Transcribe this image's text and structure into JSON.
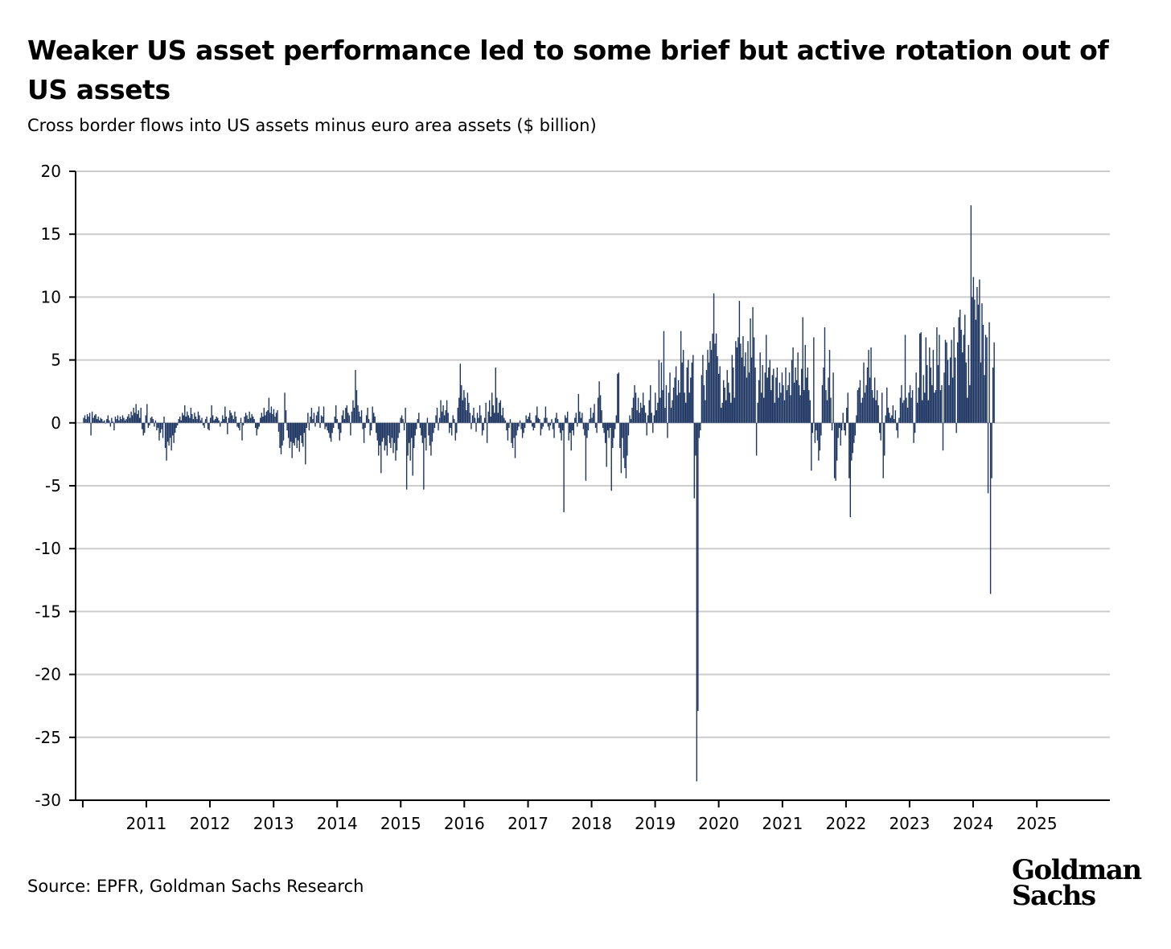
{
  "title": "Weaker US asset performance led to some brief but active rotation out of US assets",
  "subtitle": "Cross border flows into US assets minus euro area assets ($ billion)",
  "source": "Source: EPFR, Goldman Sachs Research",
  "logo": {
    "line1": "Goldman",
    "line2": "Sachs"
  },
  "colors": {
    "bar": "#1c3461",
    "grid": "#cccccc",
    "axis": "#000000"
  },
  "chart_data": {
    "type": "bar",
    "title": "Weaker US asset performance led to some brief but active rotation out of US assets",
    "ylabel": "Cross border flows into US assets minus euro area assets ($ billion)",
    "xlabel": "",
    "ylim": [
      -30,
      20
    ],
    "yticks": [
      20,
      15,
      10,
      5,
      0,
      -5,
      -10,
      -15,
      -20,
      -25,
      -30
    ],
    "ytick_labels": [
      "20",
      "15",
      "10",
      "5",
      "0",
      "-5",
      "-10",
      "-15",
      "-20",
      "-25",
      "-30"
    ],
    "xlim": [
      "2010-01-06",
      "2025-12-31"
    ],
    "xticks": [
      "2011",
      "2012",
      "2013",
      "2014",
      "2015",
      "2016",
      "2017",
      "2018",
      "2019",
      "2020",
      "2021",
      "2022",
      "2023",
      "2024",
      "2025"
    ],
    "grid": "horizontal",
    "legend": "none",
    "series": [
      {
        "frequency": "weekly",
        "start": "2010-01-06",
        "values": [
          0.4,
          0.6,
          0.3,
          0.7,
          0.5,
          0.8,
          -1.0,
          0.9,
          0.4,
          0.6,
          0.7,
          0.3,
          0.5,
          0.2,
          0.4,
          0.3,
          0.1,
          0.2,
          0.0,
          0.3,
          0.6,
          0.2,
          -0.3,
          0.4,
          0.1,
          -0.6,
          0.5,
          0.3,
          0.6,
          0.2,
          0.5,
          0.3,
          0.6,
          0.4,
          0.2,
          0.3,
          0.5,
          0.7,
          0.4,
          0.9,
          0.6,
          1.2,
          0.8,
          1.5,
          0.7,
          1.0,
          0.4,
          1.2,
          -0.5,
          -1.0,
          -0.8,
          0.6,
          1.5,
          -0.4,
          -0.2,
          0.4,
          0.5,
          0.3,
          -0.3,
          0.2,
          -0.6,
          -0.4,
          -1.4,
          -0.8,
          -0.5,
          -1.2,
          0.5,
          -2.0,
          -3.0,
          -1.5,
          -1.8,
          -1.2,
          -2.2,
          -1.0,
          -1.6,
          -0.8,
          -0.4,
          -0.2,
          0.3,
          0.5,
          0.2,
          0.8,
          0.6,
          1.4,
          0.5,
          0.9,
          0.6,
          0.4,
          1.2,
          0.7,
          0.3,
          0.8,
          0.5,
          0.3,
          0.9,
          0.6,
          0.2,
          0.4,
          -0.2,
          -0.4,
          0.3,
          0.5,
          -0.5,
          -0.6,
          0.4,
          1.4,
          0.6,
          0.2,
          0.3,
          0.5,
          0.4,
          0.2,
          -0.3,
          0.1,
          0.6,
          0.3,
          1.3,
          0.5,
          -0.9,
          0.4,
          1.0,
          0.8,
          0.6,
          0.3,
          0.9,
          0.5,
          -0.3,
          -0.4,
          -0.6,
          0.4,
          -1.4,
          -0.2,
          0.5,
          0.8,
          0.6,
          0.3,
          0.9,
          0.4,
          0.7,
          0.5,
          0.3,
          -0.4,
          -1.0,
          -0.5,
          -0.3,
          0.4,
          0.8,
          0.5,
          1.2,
          0.6,
          0.9,
          1.0,
          2.0,
          0.8,
          1.3,
          0.7,
          1.1,
          0.5,
          0.8,
          1.0,
          -0.7,
          -2.0,
          -2.5,
          -1.8,
          -1.4,
          2.4,
          1.0,
          -0.6,
          -1.2,
          -2.0,
          -1.5,
          -2.8,
          -1.6,
          -1.8,
          -1.2,
          -2.0,
          -1.4,
          -2.3,
          -1.0,
          -1.6,
          -1.9,
          -0.8,
          -3.3,
          -0.4,
          0.8,
          -0.6,
          0.5,
          1.2,
          0.3,
          0.8,
          -0.3,
          0.6,
          0.9,
          1.3,
          -0.4,
          0.6,
          0.5,
          1.3,
          -0.5,
          -0.3,
          -0.6,
          -0.8,
          -1.2,
          -1.5,
          -0.8,
          -0.4,
          0.5,
          1.4,
          0.3,
          -0.5,
          -1.4,
          -0.8,
          0.6,
          1.0,
          0.3,
          1.2,
          1.4,
          0.8,
          0.6,
          -1.0,
          0.9,
          1.8,
          1.2,
          4.2,
          2.6,
          1.4,
          0.9,
          0.5,
          1.0,
          -0.5,
          -1.6,
          -0.4,
          0.6,
          1.2,
          0.3,
          -1.0,
          -0.6,
          1.3,
          0.8,
          0.5,
          -0.8,
          -1.4,
          -2.6,
          -1.8,
          -4.0,
          -1.5,
          -1.2,
          -2.2,
          -1.8,
          -2.6,
          -1.0,
          -1.6,
          -2.0,
          -1.2,
          -2.4,
          -1.6,
          -3.0,
          -2.2,
          -1.2,
          -0.8,
          0.4,
          0.6,
          0.3,
          -0.6,
          1.2,
          -5.3,
          -2.6,
          -1.6,
          -3.0,
          -1.2,
          -4.2,
          -2.0,
          -1.0,
          -0.5,
          0.3,
          0.8,
          -0.4,
          -1.0,
          -1.6,
          -5.3,
          -1.2,
          -2.2,
          0.4,
          -1.0,
          -1.8,
          -2.6,
          -1.5,
          -0.8,
          -0.4,
          0.6,
          1.2,
          -0.6,
          0.4,
          1.8,
          0.9,
          1.4,
          0.6,
          1.0,
          1.8,
          0.8,
          -0.8,
          -0.4,
          -1.0,
          0.6,
          0.3,
          -1.4,
          -0.8,
          1.2,
          2.0,
          4.7,
          3.0,
          1.8,
          2.6,
          2.0,
          1.0,
          2.4,
          1.6,
          0.8,
          -0.5,
          0.6,
          1.2,
          0.4,
          -0.7,
          0.8,
          0.4,
          1.4,
          0.6,
          -1.0,
          -0.6,
          0.4,
          1.6,
          -1.6,
          0.9,
          1.8,
          0.5,
          2.4,
          1.4,
          0.8,
          4.4,
          2.0,
          0.8,
          1.6,
          1.8,
          0.6,
          1.2,
          0.4,
          0.2,
          -0.6,
          -1.4,
          -0.4,
          0.3,
          -1.6,
          -2.0,
          -1.2,
          -2.8,
          -1.0,
          -0.6,
          -0.3,
          0.2,
          -0.5,
          -1.2,
          -0.8,
          -0.4,
          0.6,
          0.3,
          0.5,
          0.8,
          0.2,
          -0.3,
          -0.6,
          -0.4,
          0.6,
          1.3,
          0.4,
          0.3,
          -1.0,
          -0.5,
          -0.3,
          0.4,
          1.3,
          0.4,
          -0.3,
          -0.6,
          -0.2,
          0.3,
          -0.5,
          -1.2,
          0.4,
          0.8,
          0.3,
          -0.4,
          -0.8,
          -1.4,
          -0.6,
          -7.1,
          0.6,
          0.4,
          0.9,
          -1.4,
          -0.8,
          -2.2,
          -0.6,
          -1.0,
          0.4,
          0.8,
          -0.3,
          2.3,
          0.9,
          0.4,
          0.8,
          -0.5,
          -1.0,
          -4.6,
          -1.2,
          -0.6,
          0.3,
          1.2,
          0.4,
          0.8,
          1.5,
          -0.4,
          -0.8,
          2.0,
          3.3,
          2.2,
          1.0,
          -0.4,
          -0.8,
          -1.6,
          -3.5,
          -0.6,
          -1.2,
          -0.4,
          -5.4,
          -2.0,
          -1.2,
          -0.5,
          0.6,
          3.9,
          4.0,
          -2.0,
          -4.0,
          -1.2,
          -2.8,
          -3.6,
          -4.4,
          -2.6,
          -1.0,
          0.6,
          0.3,
          1.2,
          2.0,
          3.0,
          2.4,
          1.0,
          2.0,
          0.8,
          1.6,
          1.2,
          2.4,
          1.4,
          0.8,
          -1.0,
          0.6,
          1.8,
          3.0,
          0.8,
          -0.8,
          0.6,
          2.4,
          1.0,
          1.6,
          5.0,
          2.0,
          4.8,
          2.6,
          7.3,
          1.2,
          3.0,
          -1.2,
          2.4,
          4.0,
          1.2,
          1.8,
          2.8,
          3.6,
          4.5,
          2.2,
          3.4,
          2.4,
          7.3,
          4.8,
          5.8,
          2.4,
          1.6,
          4.4,
          5.0,
          2.4,
          3.6,
          4.8,
          5.4,
          -6.0,
          -2.6,
          -28.5,
          -22.9,
          -1.2,
          -0.6,
          3.8,
          5.4,
          3.0,
          1.8,
          4.2,
          5.8,
          4.8,
          6.5,
          5.8,
          7.1,
          10.3,
          6.3,
          7.1,
          5.3,
          3.9,
          4.5,
          1.2,
          1.6,
          3.4,
          2.8,
          1.8,
          4.2,
          3.2,
          2.4,
          1.6,
          5.4,
          4.4,
          2.0,
          6.5,
          6.0,
          6.8,
          9.7,
          6.3,
          5.2,
          6.9,
          4.5,
          5.6,
          3.6,
          6.5,
          4.0,
          8.3,
          5.2,
          9.2,
          6.8,
          4.4,
          -2.6,
          1.6,
          3.4,
          5.6,
          2.4,
          4.6,
          2.0,
          4.0,
          7.0,
          3.6,
          4.4,
          5.0,
          2.6,
          3.8,
          4.3,
          1.6,
          3.6,
          4.4,
          2.0,
          3.2,
          2.4,
          4.0,
          3.0,
          1.8,
          4.4,
          2.6,
          3.0,
          4.0,
          2.2,
          5.0,
          6.0,
          3.2,
          4.4,
          3.4,
          5.6,
          3.0,
          2.2,
          4.3,
          8.4,
          2.6,
          6.2,
          3.6,
          4.4,
          2.6,
          1.8,
          -3.8,
          -0.8,
          6.8,
          -1.6,
          -0.6,
          -1.4,
          -3.0,
          -2.2,
          -1.0,
          3.0,
          4.4,
          7.6,
          2.6,
          1.8,
          3.6,
          5.8,
          2.0,
          -0.6,
          4.0,
          -4.4,
          -4.6,
          -3.0,
          -1.2,
          -0.4,
          -1.8,
          -0.6,
          0.8,
          -0.6,
          -1.0,
          1.2,
          2.4,
          -4.4,
          -7.5,
          -3.0,
          -2.4,
          -1.6,
          -1.0,
          0.6,
          2.6,
          2.8,
          3.4,
          1.6,
          2.0,
          4.8,
          2.4,
          3.0,
          4.4,
          5.8,
          3.6,
          6.0,
          2.6,
          2.0,
          3.6,
          1.8,
          2.6,
          1.4,
          -0.8,
          -1.4,
          2.4,
          -4.4,
          -2.6,
          0.6,
          2.8,
          1.2,
          0.8,
          0.4,
          0.6,
          1.4,
          0.3,
          1.0,
          -0.6,
          -1.2,
          0.4,
          2.0,
          3.0,
          1.6,
          1.8,
          7.0,
          2.0,
          1.2,
          2.4,
          3.0,
          2.0,
          2.6,
          -1.6,
          -0.8,
          4.0,
          1.6,
          2.8,
          7.1,
          7.2,
          1.8,
          3.8,
          2.4,
          6.8,
          4.6,
          1.8,
          6.0,
          4.4,
          3.0,
          5.8,
          2.4,
          2.6,
          7.6,
          4.6,
          7.0,
          2.6,
          3.0,
          -2.2,
          4.0,
          6.6,
          6.4,
          5.0,
          3.0,
          5.2,
          6.6,
          3.6,
          7.6,
          5.2,
          -0.8,
          6.4,
          8.4,
          9.0,
          7.4,
          5.6,
          7.0,
          8.6,
          4.8,
          2.0,
          6.2,
          3.0,
          17.3,
          10.0,
          11.6,
          9.8,
          8.2,
          10.8,
          9.4,
          11.4,
          4.8,
          9.5,
          7.8,
          3.8,
          7.0,
          6.8,
          -5.6,
          8.0,
          -13.6,
          -4.4,
          4.4,
          6.4
        ]
      }
    ]
  }
}
